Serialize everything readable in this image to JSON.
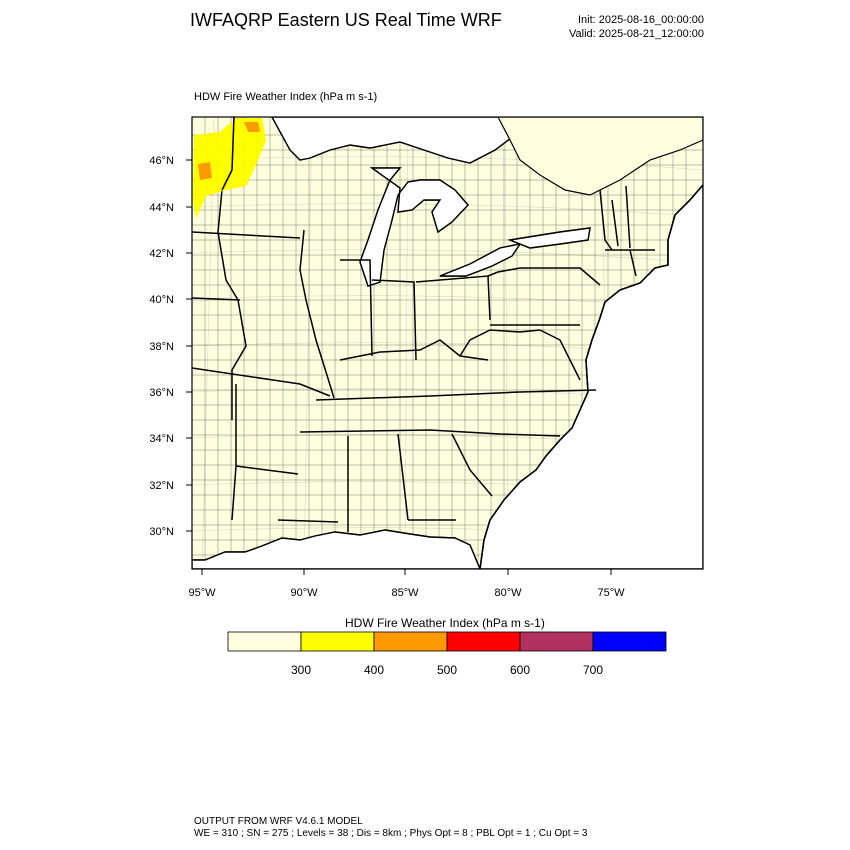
{
  "header": {
    "title": "IWFAQRP Eastern US Real Time WRF",
    "init": "Init: 2025-08-16_00:00:00",
    "valid": "Valid: 2025-08-21_12:00:00"
  },
  "plot": {
    "subtitle": "HDW Fire Weather Index   (hPa m s-1)",
    "lat_labels": [
      "46°N",
      "44°N",
      "42°N",
      "40°N",
      "38°N",
      "36°N",
      "34°N",
      "32°N",
      "30°N"
    ],
    "lon_labels": [
      "95°W",
      "90°W",
      "85°W",
      "80°W",
      "75°W"
    ],
    "colors": {
      "land": "#ffffe0",
      "water": "#ffffff",
      "boundaries": "#000000"
    },
    "fire_index_patches": [
      {
        "region": "northwest Minnesota / eastern Dakotas",
        "level": "300-400",
        "color": "#ffff00"
      },
      {
        "region": "northwest Minnesota",
        "level": "400-500",
        "color": "#ff9900"
      }
    ]
  },
  "colorbar": {
    "title": "HDW Fire Weather Index (hPa m s-1)",
    "colors": [
      "#ffffe0",
      "#ffff00",
      "#ff9900",
      "#ff0000",
      "#b03060",
      "#0000ff"
    ],
    "labels": [
      "300",
      "400",
      "500",
      "600",
      "700"
    ]
  },
  "footer": {
    "line1": "OUTPUT FROM WRF V4.6.1 MODEL",
    "line2": "WE = 310 ; SN = 275 ; Levels = 38 ; Dis = 8km ; Phys Opt = 8 ; PBL Opt = 1 ; Cu Opt = 3"
  }
}
